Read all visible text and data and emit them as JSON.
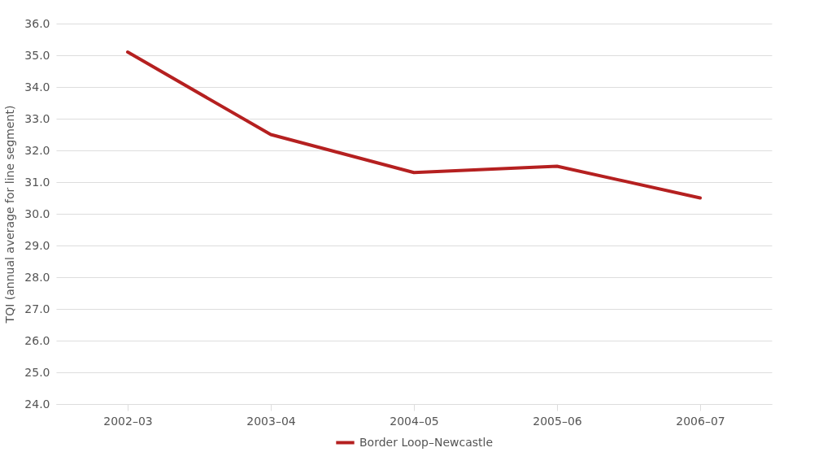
{
  "chart_data": {
    "type": "line",
    "ylabel": "TQI (annual average for line segment)",
    "categories": [
      "2002–03",
      "2003–04",
      "2004–05",
      "2005–06",
      "2006–07"
    ],
    "series": [
      {
        "name": "Border Loop–Newcastle",
        "color": "#b52020",
        "values": [
          35.1,
          32.5,
          31.3,
          31.5,
          30.5
        ]
      }
    ],
    "ylim": [
      24,
      36
    ],
    "yticks": [
      {
        "value": 24,
        "label": "24.0"
      },
      {
        "value": 25,
        "label": "25.0"
      },
      {
        "value": 26,
        "label": "26.0"
      },
      {
        "value": 27,
        "label": "27.0"
      },
      {
        "value": 28,
        "label": "28.0"
      },
      {
        "value": 29,
        "label": "29.0"
      },
      {
        "value": 30,
        "label": "30.0"
      },
      {
        "value": 31,
        "label": "31.0"
      },
      {
        "value": 32,
        "label": "32.0"
      },
      {
        "value": 33,
        "label": "33.0"
      },
      {
        "value": 34,
        "label": "34.0"
      },
      {
        "value": 35,
        "label": "35.0"
      },
      {
        "value": 36,
        "label": "36.0"
      }
    ],
    "grid": "y",
    "legend": "bottom"
  }
}
